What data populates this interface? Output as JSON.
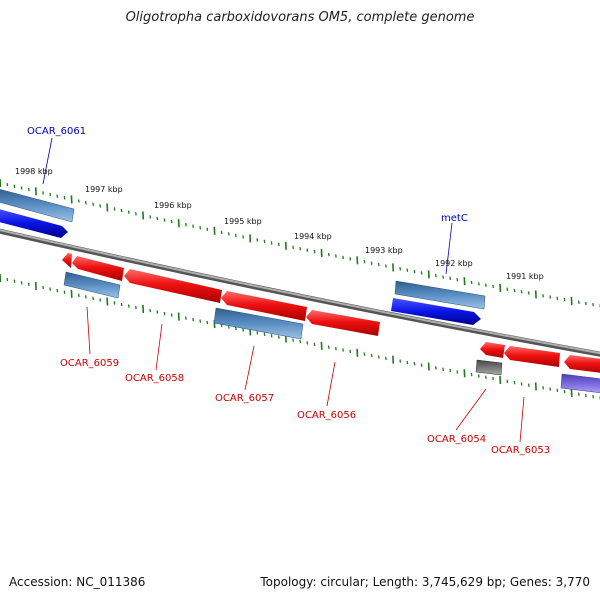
{
  "title": "Oligotropha carboxidovorans OM5, complete genome",
  "footer": {
    "accession": "Accession: NC_011386",
    "summary": "Topology: circular; Length: 3,745,629 bp; Genes: 3,770"
  },
  "colors": {
    "backbone": "#8a8a8a",
    "ruler": "#1f7a1f",
    "cds_red": "#ee1111",
    "gene_blue": "#0a14e6",
    "gene_steel": "#4a7fb5",
    "gene_gray": "#666666",
    "gene_purple": "#6a5acd",
    "label_red": "#cc0000",
    "label_blue": "#0000bb"
  },
  "ruler_labels": [
    "1998 kbp",
    "1997 kbp",
    "1996 kbp",
    "1995 kbp",
    "1994 kbp",
    "1993 kbp",
    "1992 kbp",
    "1991 kbp"
  ],
  "gene_labels": {
    "ocar_6061": "OCAR_6061",
    "metc": "metC",
    "ocar_6059": "OCAR_6059",
    "ocar_6058": "OCAR_6058",
    "ocar_6057": "OCAR_6057",
    "ocar_6056": "OCAR_6056",
    "ocar_6054": "OCAR_6054",
    "ocar_6053": "OCAR_6053"
  }
}
